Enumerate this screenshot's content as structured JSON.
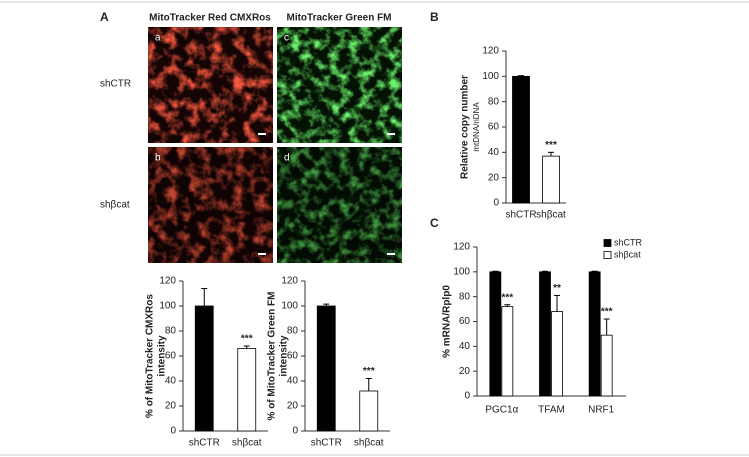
{
  "figure": {
    "panel_labels": [
      "A",
      "B",
      "C"
    ],
    "column_titles": [
      "MitoTracker Red CMXRos",
      "MitoTracker Green FM"
    ],
    "row_labels": [
      "shCTR",
      "shβcat"
    ],
    "tile_labels": [
      [
        "a",
        "c"
      ],
      [
        "b",
        "d"
      ]
    ]
  },
  "chart_data": [
    {
      "type": "bar",
      "ylabel": [
        "% of MitoTracker CMXRos",
        "intensity"
      ],
      "categories": [
        "shCTR",
        "shβcat"
      ],
      "values": [
        100,
        66
      ],
      "errors": [
        14,
        2
      ],
      "colors": [
        "#000000",
        "#ffffff"
      ],
      "annotations": [
        null,
        "***"
      ],
      "ylim": [
        0,
        120
      ],
      "yticks": [
        0,
        20,
        40,
        60,
        80,
        100,
        120
      ]
    },
    {
      "type": "bar",
      "ylabel": [
        "% of MitoTracker Green FM",
        "intensity"
      ],
      "categories": [
        "shCTR",
        "shβcat"
      ],
      "values": [
        100,
        32
      ],
      "errors": [
        1.5,
        10
      ],
      "colors": [
        "#000000",
        "#ffffff"
      ],
      "annotations": [
        null,
        "***"
      ],
      "ylim": [
        0,
        120
      ],
      "yticks": [
        0,
        20,
        40,
        60,
        80,
        100,
        120
      ]
    },
    {
      "type": "bar",
      "ylabel": [
        "Relative copy number",
        "mtDNA/nDNA"
      ],
      "categories": [
        "shCTR",
        "shβcat"
      ],
      "values": [
        100,
        37
      ],
      "errors": [
        0.5,
        3
      ],
      "colors": [
        "#000000",
        "#ffffff"
      ],
      "annotations": [
        null,
        "***"
      ],
      "ylim": [
        0,
        120
      ],
      "yticks": [
        0,
        20,
        40,
        60,
        80,
        100,
        120
      ]
    },
    {
      "type": "bar",
      "ylabel": [
        "% mRNA/Rplp0"
      ],
      "categories": [
        "PGC1α",
        "TFAM",
        "NRF1"
      ],
      "series": [
        {
          "name": "shCTR",
          "color": "#000000",
          "values": [
            100,
            100,
            100
          ],
          "errors": [
            0.5,
            0.5,
            0.5
          ]
        },
        {
          "name": "shβcat",
          "color": "#ffffff",
          "values": [
            72,
            68,
            49
          ],
          "errors": [
            1.5,
            13,
            13
          ],
          "annotations": [
            "***",
            "**",
            "***"
          ]
        }
      ],
      "legend": "top-right",
      "ylim": [
        0,
        120
      ],
      "yticks": [
        0,
        20,
        40,
        60,
        80,
        100,
        120
      ]
    }
  ]
}
